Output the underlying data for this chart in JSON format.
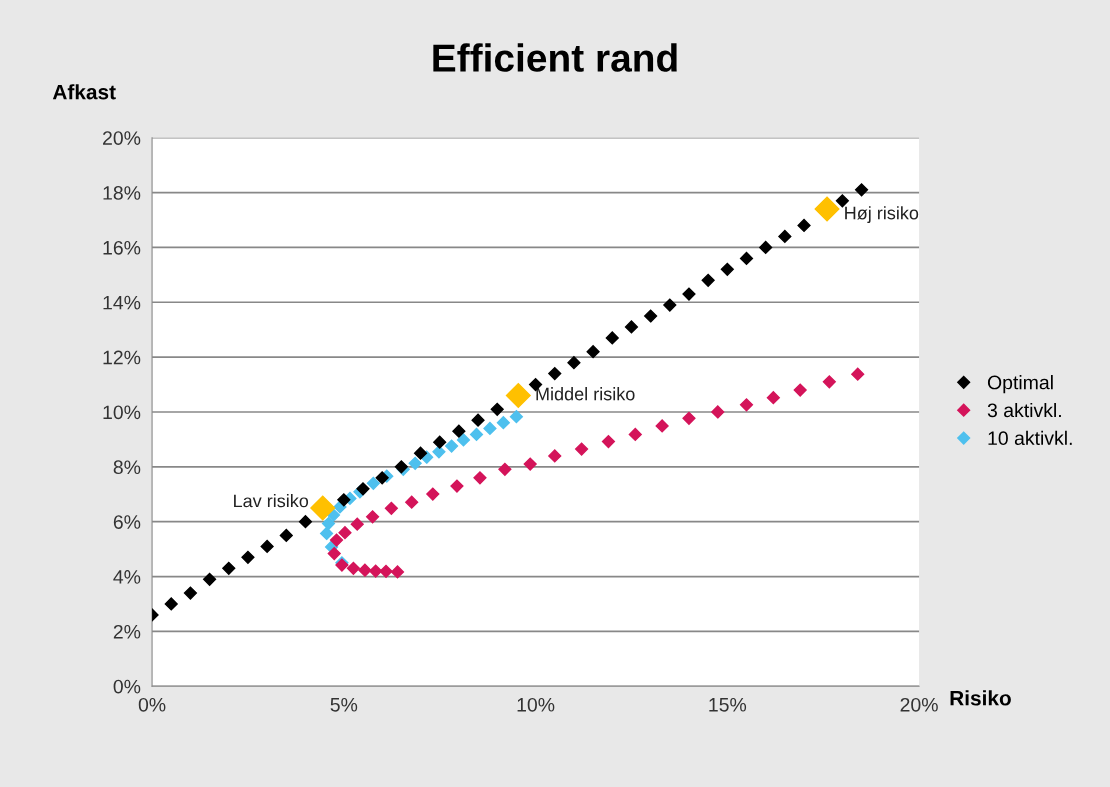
{
  "chart_data": {
    "type": "scatter",
    "title": "Efficient rand",
    "xlabel": "Risiko",
    "ylabel": "Afkast",
    "xlim": [
      0,
      20
    ],
    "xticks": [
      {
        "value": 0,
        "label": "0%"
      },
      {
        "value": 5,
        "label": "5%"
      },
      {
        "value": 10,
        "label": "10%"
      },
      {
        "value": 15,
        "label": "15%"
      },
      {
        "value": 20,
        "label": "20%"
      }
    ],
    "ylim": [
      0,
      20
    ],
    "yticks": [
      {
        "value": 0,
        "label": "0%"
      },
      {
        "value": 2,
        "label": "2%"
      },
      {
        "value": 4,
        "label": "4%"
      },
      {
        "value": 6,
        "label": "6%"
      },
      {
        "value": 8,
        "label": "8%"
      },
      {
        "value": 10,
        "label": "10%"
      },
      {
        "value": 12,
        "label": "12%"
      },
      {
        "value": 14,
        "label": "14%"
      },
      {
        "value": 16,
        "label": "16%"
      },
      {
        "value": 18,
        "label": "18%"
      },
      {
        "value": 20,
        "label": "20%"
      }
    ],
    "grid": "y",
    "legend": "right",
    "marker": "diamond",
    "series": [
      {
        "name": "Optimal",
        "color": "#000000",
        "x": [
          0,
          0.5,
          1,
          1.5,
          2,
          2.5,
          3,
          3.5,
          4,
          4.5,
          5,
          5.5,
          6,
          6.5,
          7,
          7.5,
          8,
          8.5,
          9,
          9.5,
          10,
          10.5,
          11,
          11.5,
          12,
          12.5,
          13,
          13.5,
          14,
          14.5,
          15,
          15.5,
          16,
          16.5,
          17,
          17.5,
          18,
          18.5
        ],
        "values": [
          2.6,
          3.0,
          3.4,
          3.9,
          4.3,
          4.7,
          5.1,
          5.5,
          6.0,
          null,
          6.8,
          7.2,
          7.6,
          8.0,
          8.5,
          8.9,
          9.3,
          9.7,
          10.1,
          null,
          11.0,
          11.4,
          11.8,
          12.2,
          12.7,
          13.1,
          13.5,
          13.9,
          14.3,
          14.8,
          15.2,
          15.6,
          16.0,
          16.4,
          16.8,
          null,
          17.7,
          18.1
        ]
      },
      {
        "name": "3 aktivkl.",
        "color": "#d4145a",
        "x": [
          6.4,
          6.1,
          5.83,
          5.55,
          5.25,
          4.95,
          4.75,
          4.81,
          5.03,
          5.35,
          5.75,
          6.24,
          6.77,
          7.32,
          7.95,
          8.55,
          9.2,
          9.86,
          10.5,
          11.2,
          11.9,
          12.6,
          13.3,
          14.0,
          14.75,
          15.5,
          16.2,
          16.9,
          17.66,
          18.4
        ],
        "values": [
          4.17,
          4.19,
          4.2,
          4.23,
          4.3,
          4.42,
          4.84,
          5.33,
          5.6,
          5.91,
          6.18,
          6.49,
          6.71,
          7.01,
          7.3,
          7.6,
          7.91,
          8.1,
          8.4,
          8.65,
          8.92,
          9.18,
          9.49,
          9.77,
          10.0,
          10.26,
          10.52,
          10.8,
          11.1,
          11.38
        ]
      },
      {
        "name": "10 aktivkl.",
        "color": "#4ec0ee",
        "x": [
          4.95,
          4.68,
          4.55,
          4.6,
          4.73,
          4.9,
          5.16,
          5.42,
          5.77,
          6.12,
          6.55,
          6.86,
          7.16,
          7.48,
          7.81,
          8.12,
          8.46,
          8.81,
          9.16,
          9.5
        ],
        "values": [
          4.5,
          5.08,
          5.57,
          5.93,
          6.24,
          6.54,
          6.85,
          7.09,
          7.4,
          7.66,
          7.91,
          8.13,
          8.35,
          8.55,
          8.76,
          8.98,
          9.18,
          9.4,
          9.61,
          9.83
        ]
      },
      {
        "color": "#ffc000",
        "x": [
          4.45,
          9.55,
          17.6
        ],
        "values": [
          6.5,
          10.6,
          17.4
        ]
      }
    ],
    "annotations": [
      {
        "text": "Lav risiko",
        "x": 4.45,
        "y": 6.5
      },
      {
        "text": "Middel risiko",
        "x": 9.55,
        "y": 10.6
      },
      {
        "text": "Høj risiko",
        "x": 17.6,
        "y": 17.4
      }
    ]
  }
}
